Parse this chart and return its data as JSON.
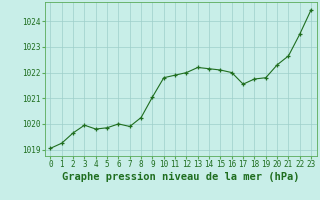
{
  "x": [
    0,
    1,
    2,
    3,
    4,
    5,
    6,
    7,
    8,
    9,
    10,
    11,
    12,
    13,
    14,
    15,
    16,
    17,
    18,
    19,
    20,
    21,
    22,
    23
  ],
  "y": [
    1019.05,
    1019.25,
    1019.65,
    1019.95,
    1019.8,
    1019.85,
    1020.0,
    1019.9,
    1020.25,
    1021.05,
    1021.8,
    1021.9,
    1022.0,
    1022.2,
    1022.15,
    1022.1,
    1022.0,
    1021.55,
    1021.75,
    1021.8,
    1022.3,
    1022.65,
    1023.5,
    1024.45
  ],
  "ylim": [
    1018.75,
    1024.75
  ],
  "yticks": [
    1019,
    1020,
    1021,
    1022,
    1023,
    1024
  ],
  "xtick_labels": [
    "0",
    "1",
    "2",
    "3",
    "4",
    "5",
    "6",
    "7",
    "8",
    "9",
    "10",
    "11",
    "12",
    "13",
    "14",
    "15",
    "16",
    "17",
    "18",
    "19",
    "20",
    "21",
    "22",
    "23"
  ],
  "xlabel": "Graphe pression niveau de la mer (hPa)",
  "line_color": "#1f6e1f",
  "marker_color": "#1f6e1f",
  "bg_color": "#c8eee8",
  "grid_color": "#9ecfca",
  "tick_label_color": "#1f6e1f",
  "xlabel_color": "#1f6e1f",
  "border_color": "#5aaa5a",
  "tick_fontsize": 5.5,
  "xlabel_fontsize": 7.5
}
